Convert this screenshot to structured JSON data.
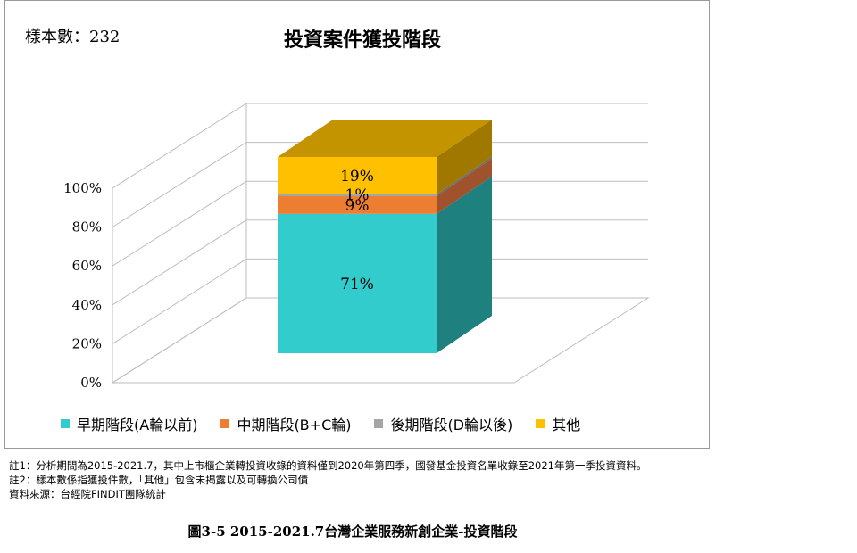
{
  "sample_label": "樣本數：",
  "sample_value": "232",
  "chart_data": {
    "type": "bar",
    "stacked": true,
    "three_d": true,
    "title": "投資案件獲投階段",
    "categories": [
      ""
    ],
    "ylim": [
      0,
      100
    ],
    "y_ticks": [
      "0%",
      "20%",
      "40%",
      "60%",
      "80%",
      "100%"
    ],
    "legend_position": "bottom",
    "series": [
      {
        "name": "早期階段(A輪以前)",
        "values": [
          71
        ],
        "label": "71%",
        "color": "#33CCCC",
        "side_color": "#1F8080",
        "top_color": "#2BB0B0"
      },
      {
        "name": "中期階段(B+C輪)",
        "values": [
          9
        ],
        "label": "9%",
        "color": "#ED7D31",
        "side_color": "#A0522D",
        "top_color": "#C8642A"
      },
      {
        "name": "後期階段(D輪以後)",
        "values": [
          1
        ],
        "label": "1%",
        "color": "#A5A5A5",
        "side_color": "#6E6E6E",
        "top_color": "#8C8C8C"
      },
      {
        "name": "其他",
        "values": [
          19
        ],
        "label": "19%",
        "color": "#FFC000",
        "side_color": "#A07800",
        "top_color": "#C49400"
      }
    ]
  },
  "notes": [
    "註1：分析期間為2015-2021.7，其中上市櫃企業轉投資收錄的資料僅到2020年第四季，國發基金投資名單收錄至2021年第一季投資資料。",
    "註2：樣本數係指獲投件數，「其他」包含未揭露以及可轉換公司債",
    "資料來源：台經院FINDIT團隊統計"
  ],
  "caption": "圖3-5  2015-2021.7台灣企業服務新創企業-投資階段"
}
